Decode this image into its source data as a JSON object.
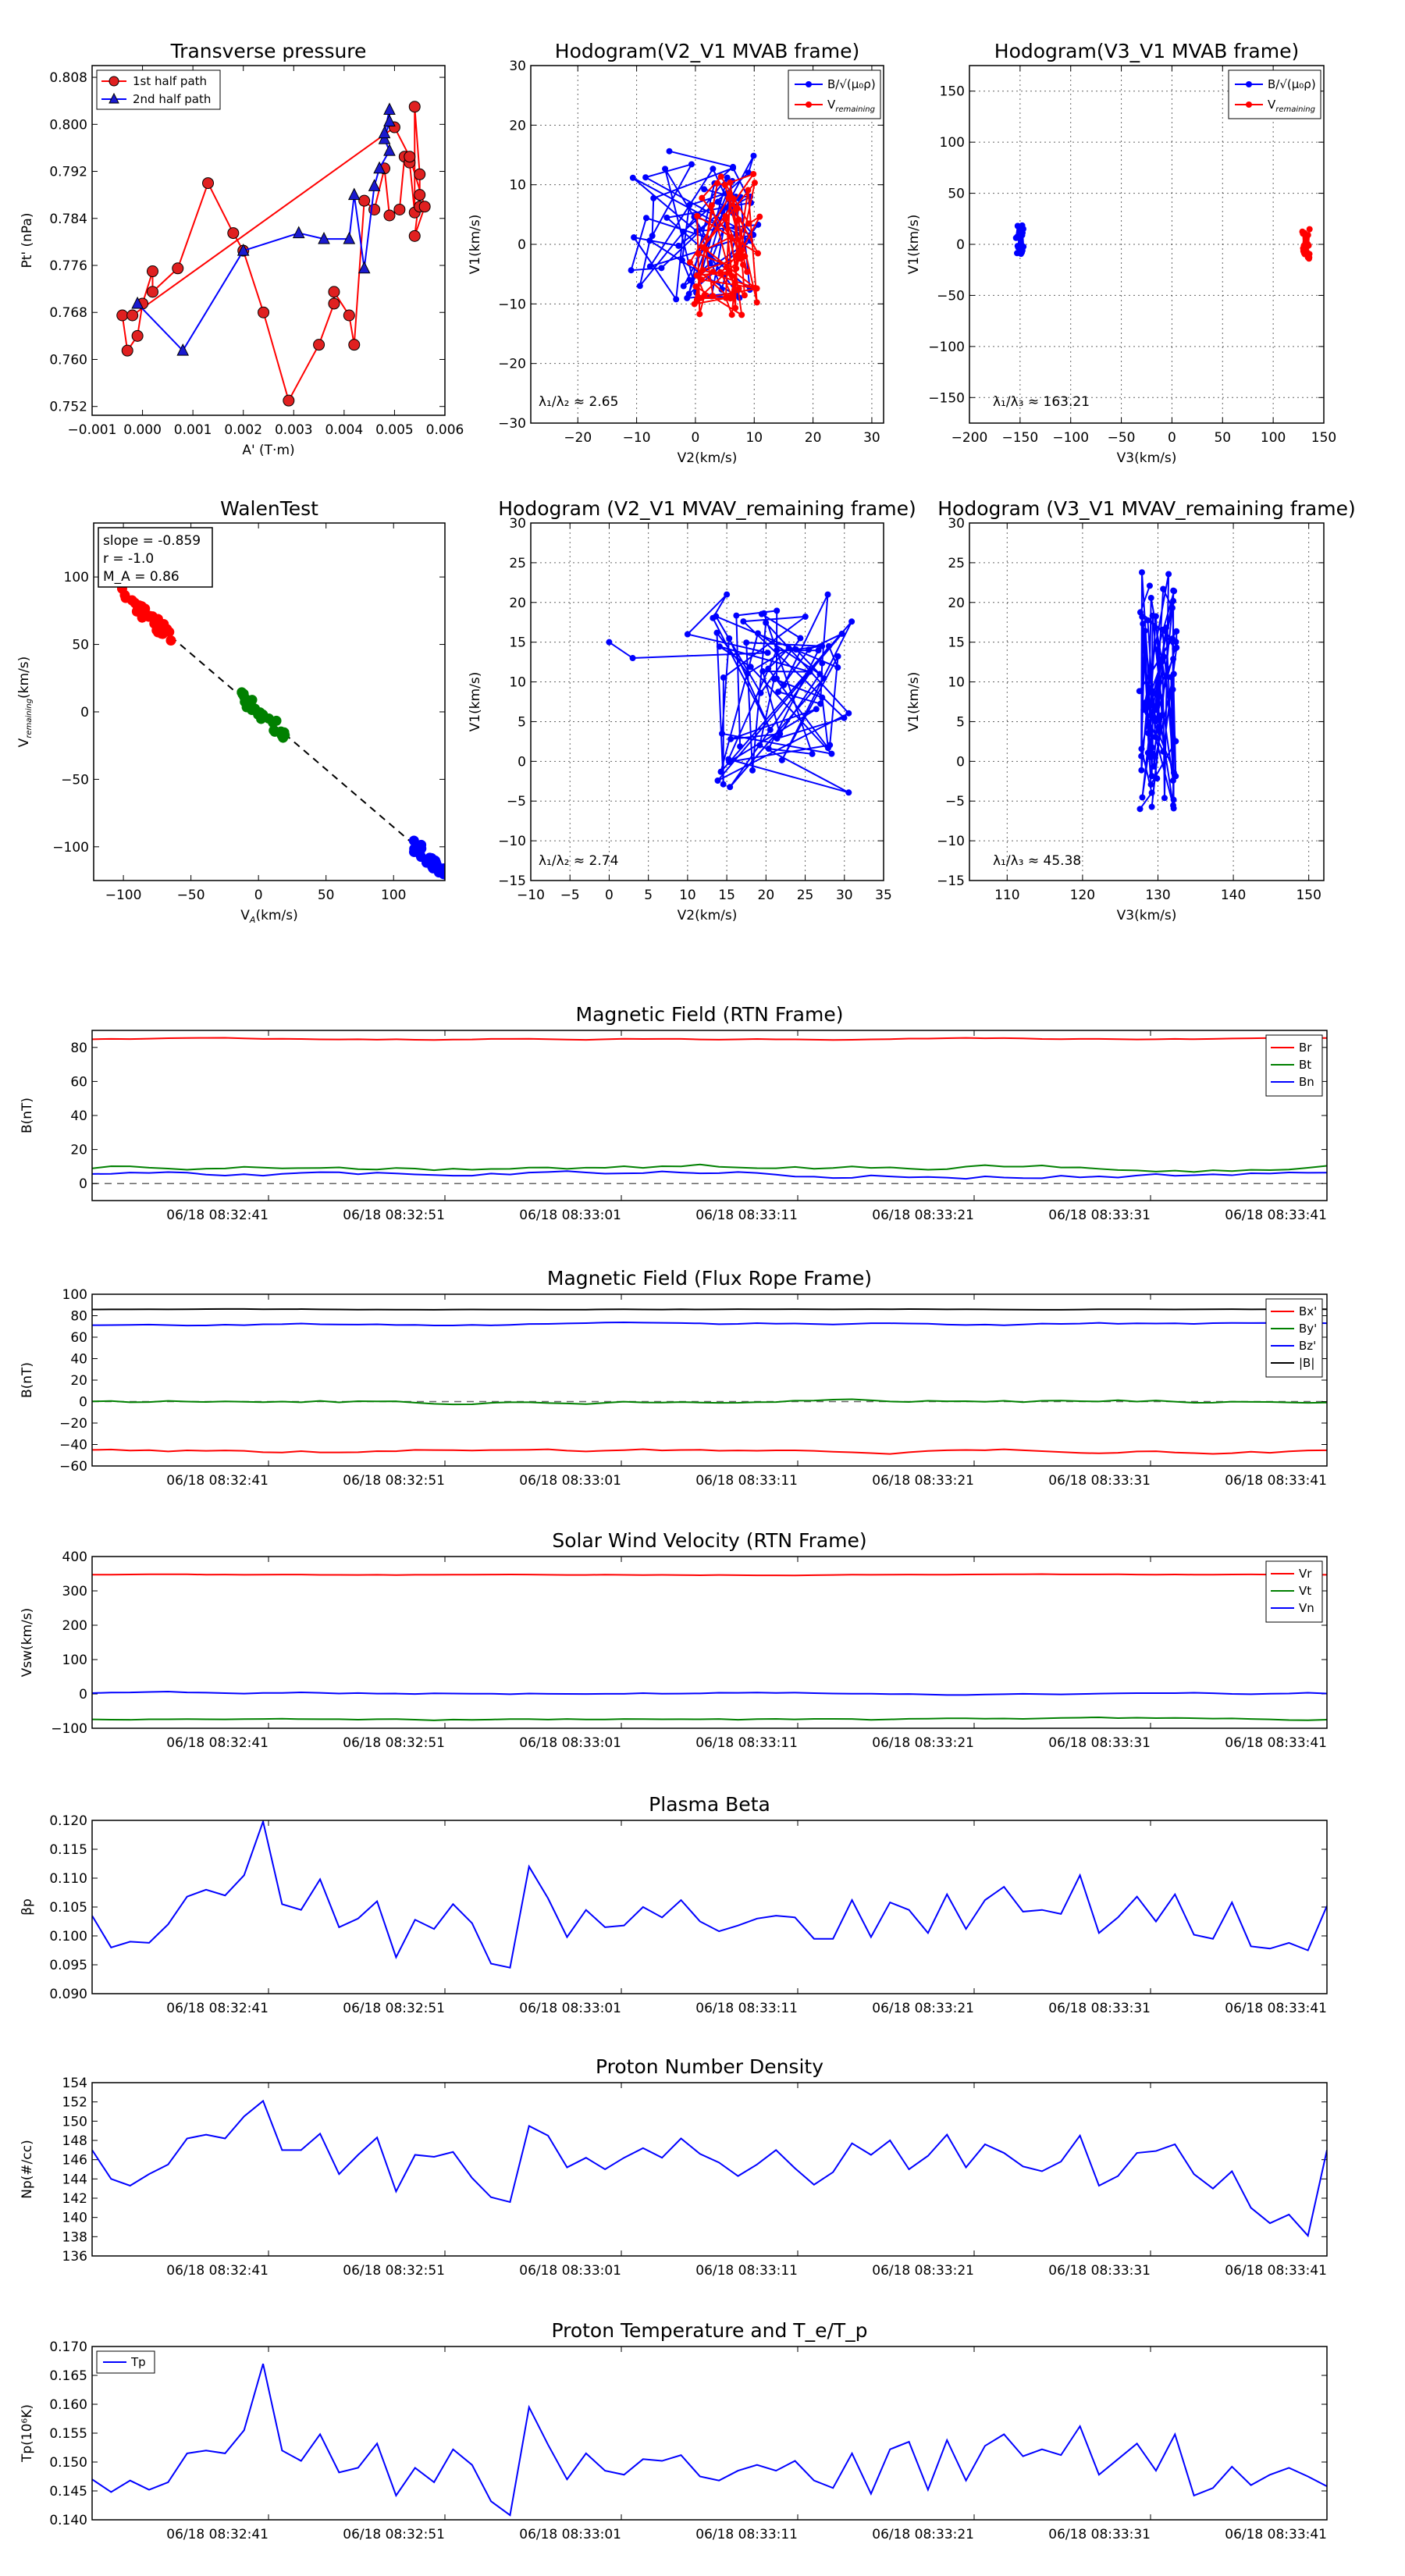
{
  "colors": {
    "red": "#ff0000",
    "green": "#008000",
    "blue": "#0000ff",
    "black": "#000000",
    "grid": "#000000",
    "redFill": "#e02020",
    "blueFill": "#1a1ad0"
  },
  "chart_data": [
    {
      "id": "tp",
      "type": "scatter-line",
      "title": "Transverse pressure",
      "xlabel": "A' (T·m)",
      "ylabel": "Pt' (nPa)",
      "xlim": [
        -0.001,
        0.006
      ],
      "ylim": [
        0.7505,
        0.81
      ],
      "xticks": [
        -0.001,
        0,
        0.001,
        0.002,
        0.003,
        0.004,
        0.005,
        0.006
      ],
      "xtick_labels": [
        "−0.001",
        "0.000",
        "0.001",
        "0.002",
        "0.003",
        "0.004",
        "0.005",
        "0.006"
      ],
      "yticks": [
        0.752,
        0.76,
        0.768,
        0.776,
        0.784,
        0.792,
        0.8,
        0.808
      ],
      "ytick_labels": [
        "0.752",
        "0.760",
        "0.768",
        "0.776",
        "0.784",
        "0.792",
        "0.800",
        "0.808"
      ],
      "legend": [
        "1st half path",
        "2nd half path"
      ],
      "series": [
        {
          "name": "1st half path",
          "color": "red",
          "marker": "o",
          "points": [
            [
              -0.0004,
              0.7675
            ],
            [
              -0.0003,
              0.7615
            ],
            [
              -0.0001,
              0.764
            ],
            [
              0,
              0.7695
            ],
            [
              0.0002,
              0.775
            ],
            [
              0.0002,
              0.7715
            ],
            [
              0.0007,
              0.7755
            ],
            [
              0.0013,
              0.79
            ],
            [
              0.0018,
              0.7815
            ],
            [
              0.002,
              0.7785
            ],
            [
              0.0024,
              0.768
            ],
            [
              0.0029,
              0.753
            ],
            [
              0.0035,
              0.7625
            ],
            [
              0.0038,
              0.7695
            ],
            [
              0.0038,
              0.7715
            ],
            [
              0.0041,
              0.7675
            ],
            [
              0.0042,
              0.7625
            ],
            [
              0.0044,
              0.787
            ],
            [
              0.0046,
              0.7855
            ],
            [
              0.0048,
              0.7925
            ],
            [
              0.0049,
              0.7845
            ],
            [
              0.0051,
              0.7855
            ],
            [
              0.0052,
              0.7945
            ],
            [
              0.0053,
              0.7935
            ],
            [
              0.0054,
              0.785
            ],
            [
              0.0054,
              0.803
            ],
            [
              0.0055,
              0.7915
            ],
            [
              0.0055,
              0.786
            ],
            [
              0.0055,
              0.788
            ],
            [
              0.0054,
              0.781
            ],
            [
              0.0056,
              0.786
            ],
            [
              0.0053,
              0.7945
            ],
            [
              0.005,
              0.7995
            ],
            [
              -0.0002,
              0.7675
            ]
          ]
        },
        {
          "name": "2nd half path",
          "color": "blue",
          "marker": "^",
          "points": [
            [
              -0.0001,
              0.7695
            ],
            [
              0.0008,
              0.7615
            ],
            [
              0.002,
              0.7785
            ],
            [
              0.0031,
              0.7815
            ],
            [
              0.0036,
              0.7805
            ],
            [
              0.0041,
              0.7805
            ],
            [
              0.0042,
              0.788
            ],
            [
              0.0044,
              0.7755
            ],
            [
              0.0046,
              0.7895
            ],
            [
              0.0047,
              0.7925
            ],
            [
              0.0049,
              0.7955
            ],
            [
              0.0048,
              0.7975
            ],
            [
              0.0049,
              0.8005
            ],
            [
              0.0049,
              0.8025
            ],
            [
              0.0048,
              0.7985
            ]
          ]
        }
      ]
    },
    {
      "id": "h1",
      "type": "hodogram",
      "title": "Hodogram(V2_V1 MVAB frame)",
      "xlabel": "V2(km/s)",
      "ylabel": "V1(km/s)",
      "xlim": [
        -28,
        32
      ],
      "ylim": [
        -30,
        30
      ],
      "xticks": [
        -20,
        -10,
        0,
        10,
        20,
        30
      ],
      "xtick_labels": [
        "−20",
        "−10",
        "0",
        "10",
        "20",
        "30"
      ],
      "yticks": [
        -30,
        -20,
        -10,
        0,
        10,
        20,
        30
      ],
      "ytick_labels": [
        "−30",
        "−20",
        "−10",
        "0",
        "10",
        "20",
        "30"
      ],
      "annotation": "λ₁/λ₂ ≈ 2.65",
      "legend": [
        "B/√(μ₀ρ)",
        "V_remaining"
      ]
    },
    {
      "id": "h2",
      "type": "hodogram",
      "title": "Hodogram(V3_V1 MVAB frame)",
      "xlabel": "V3(km/s)",
      "ylabel": "V1(km/s)",
      "xlim": [
        -200,
        150
      ],
      "ylim": [
        -175,
        175
      ],
      "xticks": [
        -200,
        -150,
        -100,
        -50,
        0,
        50,
        100,
        150
      ],
      "xtick_labels": [
        "−200",
        "−150",
        "−100",
        "−50",
        "0",
        "50",
        "100",
        "150"
      ],
      "yticks": [
        -150,
        -100,
        -50,
        0,
        50,
        100,
        150
      ],
      "ytick_labels": [
        "−150",
        "−100",
        "−50",
        "0",
        "50",
        "100",
        "150"
      ],
      "annotation": "λ₁/λ₃ ≈ 163.21",
      "legend": [
        "B/√(μ₀ρ)",
        "V_remaining"
      ]
    },
    {
      "id": "walen",
      "type": "scatter",
      "title": "WalenTest",
      "xlabel": "V_A(km/s)",
      "ylabel": "V_remaining(km/s)",
      "xlim": [
        -122,
        138
      ],
      "ylim": [
        -125,
        140
      ],
      "xticks": [
        -100,
        -50,
        0,
        50,
        100
      ],
      "xtick_labels": [
        "−100",
        "−50",
        "0",
        "50",
        "100"
      ],
      "yticks": [
        -100,
        -50,
        0,
        50,
        100
      ],
      "ytick_labels": [
        "−100",
        "−50",
        "0",
        "50",
        "100"
      ],
      "slope": -0.859,
      "r": -1.0,
      "MA": 0.86,
      "textbox": [
        "slope = -0.859",
        "r = -1.0",
        "M_A = 0.86"
      ]
    },
    {
      "id": "h3",
      "type": "hodogram",
      "title": "Hodogram (V2_V1 MVAV_remaining frame)",
      "xlabel": "V2(km/s)",
      "ylabel": "V1(km/s)",
      "xlim": [
        -10,
        35
      ],
      "ylim": [
        -15,
        30
      ],
      "xticks": [
        -10,
        -5,
        0,
        5,
        10,
        15,
        20,
        25,
        30,
        35
      ],
      "xtick_labels": [
        "−10",
        "−5",
        "0",
        "5",
        "10",
        "15",
        "20",
        "25",
        "30",
        "35"
      ],
      "yticks": [
        -15,
        -10,
        -5,
        0,
        5,
        10,
        15,
        20,
        25,
        30
      ],
      "ytick_labels": [
        "−15",
        "−10",
        "−5",
        "0",
        "5",
        "10",
        "15",
        "20",
        "25",
        "30"
      ],
      "annotation": "λ₁/λ₂ ≈ 2.74"
    },
    {
      "id": "h4",
      "type": "hodogram",
      "title": "Hodogram (V3_V1 MVAV_remaining frame)",
      "xlabel": "V3(km/s)",
      "ylabel": "V1(km/s)",
      "xlim": [
        105,
        152
      ],
      "ylim": [
        -15,
        30
      ],
      "xticks": [
        110,
        120,
        130,
        140,
        150
      ],
      "xtick_labels": [
        "110",
        "120",
        "130",
        "140",
        "150"
      ],
      "yticks": [
        -15,
        -10,
        -5,
        0,
        5,
        10,
        15,
        20,
        25,
        30
      ],
      "ytick_labels": [
        "−15",
        "−10",
        "−5",
        "0",
        "5",
        "10",
        "15",
        "20",
        "25",
        "30"
      ],
      "annotation": "λ₁/λ₃ ≈ 45.38"
    },
    {
      "id": "ts1",
      "type": "line",
      "title": "Magnetic Field (RTN Frame)",
      "ylabel": "B(nT)",
      "ylim": [
        -10,
        90
      ],
      "yticks": [
        0,
        20,
        40,
        60,
        80
      ],
      "ytick_labels": [
        "0",
        "20",
        "40",
        "60",
        "80"
      ],
      "zero_line": true,
      "legend": [
        "Br",
        "Bt",
        "Bn"
      ],
      "series": [
        {
          "name": "Br",
          "color": "red",
          "base": 85,
          "amp": 1.5
        },
        {
          "name": "Bt",
          "color": "green",
          "base": 10,
          "amp": 6
        },
        {
          "name": "Bn",
          "color": "blue",
          "base": 6,
          "amp": 6
        }
      ]
    },
    {
      "id": "ts2",
      "type": "line",
      "title": "Magnetic Field (Flux Rope Frame)",
      "ylabel": "B(nT)",
      "ylim": [
        -60,
        100
      ],
      "yticks": [
        -60,
        -40,
        -20,
        0,
        20,
        40,
        60,
        80,
        100
      ],
      "ytick_labels": [
        "−60",
        "−40",
        "−20",
        "0",
        "20",
        "40",
        "60",
        "80",
        "100"
      ],
      "zero_line": true,
      "legend": [
        "Bx'",
        "By'",
        "Bz'",
        "|B|"
      ],
      "series": [
        {
          "name": "Bx'",
          "color": "red",
          "base": -46,
          "amp": 6
        },
        {
          "name": "By'",
          "color": "green",
          "base": 0,
          "amp": 6
        },
        {
          "name": "Bz'",
          "color": "blue",
          "base": 72,
          "amp": 4
        },
        {
          "name": "|B|",
          "color": "black",
          "base": 86,
          "amp": 1
        }
      ]
    },
    {
      "id": "ts3",
      "type": "line",
      "title": "Solar Wind Velocity (RTN Frame)",
      "ylabel": "Vsw(km/s)",
      "ylim": [
        -100,
        400
      ],
      "yticks": [
        -100,
        0,
        100,
        200,
        300,
        400
      ],
      "ytick_labels": [
        "−100",
        "0",
        "100",
        "200",
        "300",
        "400"
      ],
      "legend": [
        "Vr",
        "Vt",
        "Vn"
      ],
      "series": [
        {
          "name": "Vr",
          "color": "red",
          "base": 347,
          "amp": 4
        },
        {
          "name": "Vt",
          "color": "green",
          "base": -75,
          "amp": 10
        },
        {
          "name": "Vn",
          "color": "blue",
          "base": 2,
          "amp": 10
        }
      ]
    },
    {
      "id": "ts4",
      "type": "line",
      "title": "Plasma Beta",
      "ylabel": "βp",
      "ylim": [
        0.09,
        0.12
      ],
      "yticks": [
        0.09,
        0.095,
        0.1,
        0.105,
        0.11,
        0.115,
        0.12
      ],
      "ytick_labels": [
        "0.090",
        "0.095",
        "0.100",
        "0.105",
        "0.110",
        "0.115",
        "0.120"
      ],
      "series": [
        {
          "name": "βp",
          "color": "blue",
          "values": [
            0.1035,
            0.098,
            0.099,
            0.0988,
            0.102,
            0.1068,
            0.108,
            0.107,
            0.1105,
            0.1198,
            0.1055,
            0.1045,
            0.1098,
            0.1015,
            0.103,
            0.106,
            0.0963,
            0.1028,
            0.1012,
            0.1055,
            0.1022,
            0.0952,
            0.0945,
            0.112,
            0.1065,
            0.0998,
            0.1045,
            0.1015,
            0.1018,
            0.105,
            0.1032,
            0.1062,
            0.1025,
            0.1008,
            0.1018,
            0.103,
            0.1035,
            0.1032,
            0.0995,
            0.0995,
            0.1062,
            0.0998,
            0.1058,
            0.1045,
            0.1005,
            0.1072,
            0.1012,
            0.1062,
            0.1085,
            0.1042,
            0.1045,
            0.1038,
            0.1105,
            0.1005,
            0.1032,
            0.1068,
            0.1025,
            0.1072,
            0.1002,
            0.0995,
            0.1058,
            0.0982,
            0.0978,
            0.0988,
            0.0975,
            0.1052
          ]
        }
      ]
    },
    {
      "id": "ts5",
      "type": "line",
      "title": "Proton Number Density",
      "ylabel": "Np(#/cc)",
      "ylim": [
        136,
        154
      ],
      "yticks": [
        136,
        138,
        140,
        142,
        144,
        146,
        148,
        150,
        152,
        154
      ],
      "ytick_labels": [
        "136",
        "138",
        "140",
        "142",
        "144",
        "146",
        "148",
        "150",
        "152",
        "154"
      ],
      "series": [
        {
          "name": "Np",
          "color": "blue",
          "values": [
            147,
            144,
            143.3,
            144.5,
            145.5,
            148.2,
            148.6,
            148.2,
            150.5,
            152.1,
            147,
            147,
            148.7,
            144.5,
            146.5,
            148.3,
            142.7,
            146.5,
            146.3,
            146.8,
            144.1,
            142.1,
            141.6,
            149.5,
            148.5,
            145.2,
            146.2,
            145,
            146.2,
            147.2,
            146.2,
            148.2,
            146.6,
            145.7,
            144.3,
            145.5,
            147,
            145.1,
            143.4,
            144.7,
            147.7,
            146.5,
            148,
            145,
            146.4,
            148.6,
            145.2,
            147.6,
            146.7,
            145.3,
            144.8,
            145.8,
            148.5,
            143.3,
            144.3,
            146.7,
            146.9,
            147.6,
            144.5,
            143,
            144.8,
            141,
            139.4,
            140.3,
            138.1,
            147
          ]
        }
      ]
    },
    {
      "id": "ts6",
      "type": "line",
      "title": "Proton Temperature and T_e/T_p",
      "ylabel": "Tp(10⁶K)",
      "ylim": [
        0.14,
        0.17
      ],
      "yticks": [
        0.14,
        0.145,
        0.15,
        0.155,
        0.16,
        0.165,
        0.17
      ],
      "ytick_labels": [
        "0.140",
        "0.145",
        "0.150",
        "0.155",
        "0.160",
        "0.165",
        "0.170"
      ],
      "legend": [
        "Tp"
      ],
      "series": [
        {
          "name": "Tp",
          "color": "blue",
          "values": [
            0.147,
            0.1448,
            0.1468,
            0.1452,
            0.1465,
            0.1515,
            0.152,
            0.1515,
            0.1555,
            0.167,
            0.152,
            0.1502,
            0.1548,
            0.1482,
            0.149,
            0.1532,
            0.1442,
            0.149,
            0.1465,
            0.1522,
            0.1495,
            0.1432,
            0.1408,
            0.1595,
            0.153,
            0.147,
            0.1515,
            0.1485,
            0.1478,
            0.1505,
            0.1502,
            0.1512,
            0.1475,
            0.1468,
            0.1485,
            0.1495,
            0.1485,
            0.1502,
            0.1468,
            0.1455,
            0.1515,
            0.1445,
            0.1522,
            0.1535,
            0.1452,
            0.1538,
            0.1468,
            0.1528,
            0.1548,
            0.151,
            0.1522,
            0.1512,
            0.1562,
            0.1478,
            0.1505,
            0.1532,
            0.1485,
            0.1548,
            0.1442,
            0.1455,
            0.1492,
            0.146,
            0.1478,
            0.149,
            0.1475,
            0.1458
          ]
        }
      ]
    }
  ],
  "time_ticks": [
    "06/18 08:32:41",
    "06/18 08:32:51",
    "06/18 08:33:01",
    "06/18 08:33:11",
    "06/18 08:33:21",
    "06/18 08:33:31",
    "06/18 08:33:41"
  ]
}
